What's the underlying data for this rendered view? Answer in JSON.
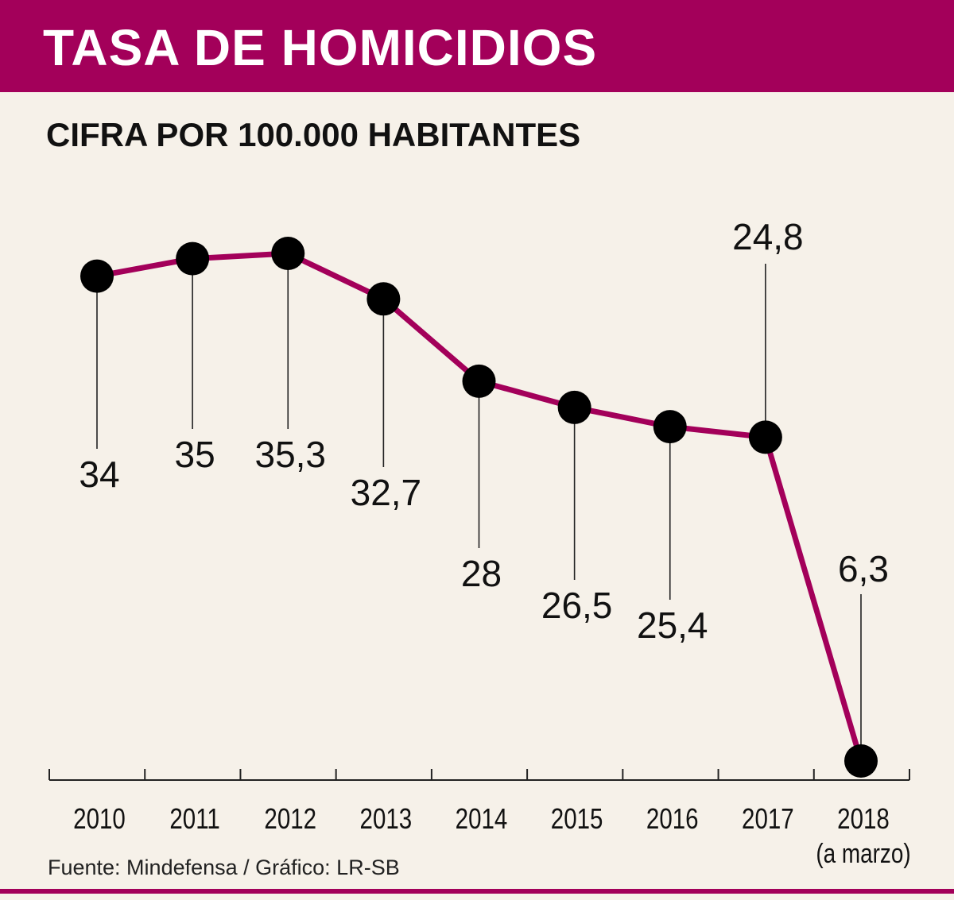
{
  "title": "TASA DE HOMICIDIOS",
  "subtitle": "CIFRA POR 100.000 HABITANTES",
  "source": "Fuente: Mindefensa / Gráfico: LR-SB",
  "colors": {
    "brand": "#a3005a",
    "background": "#f6f1e9",
    "marker": "#000000",
    "text": "#111111"
  },
  "chart_data": {
    "type": "line",
    "title": "TASA DE HOMICIDIOS",
    "subtitle": "CIFRA POR 100.000 HABITANTES",
    "categories": [
      "2010",
      "2011",
      "2012",
      "2013",
      "2014",
      "2015",
      "2016",
      "2017",
      "2018"
    ],
    "category_notes": [
      "",
      "",
      "",
      "",
      "",
      "",
      "",
      "",
      "(a marzo)"
    ],
    "values": [
      34,
      35,
      35.3,
      32.7,
      28,
      26.5,
      25.4,
      24.8,
      6.3
    ],
    "value_labels": [
      "34",
      "35",
      "35,3",
      "32,7",
      "28",
      "26,5",
      "25,4",
      "24,8",
      "6,3"
    ],
    "label_position": [
      "below",
      "below",
      "below",
      "below",
      "below",
      "below",
      "below",
      "above",
      "above"
    ],
    "xlabel": "",
    "ylabel": "",
    "ylim": [
      6.3,
      35.3
    ],
    "grid": false,
    "legend": "none"
  }
}
